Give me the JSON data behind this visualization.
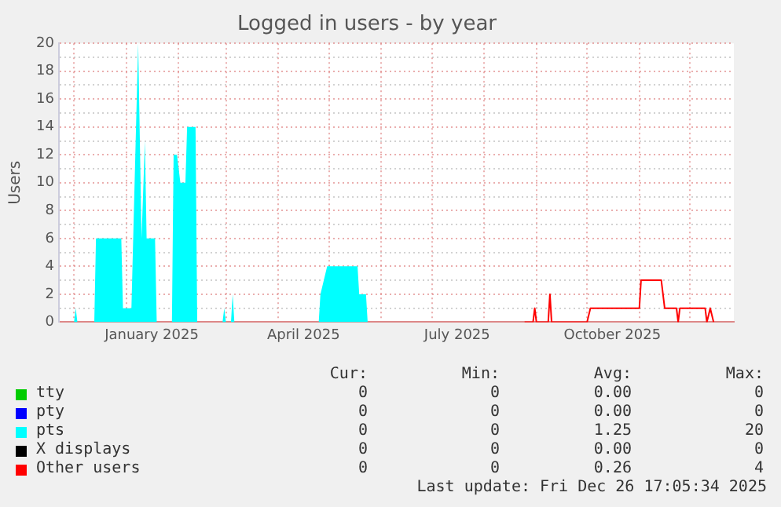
{
  "chart_data": {
    "type": "area",
    "title": "Logged in users - by year",
    "ylabel": "Users",
    "xlim": [
      "2024-11-22",
      "2025-12-27"
    ],
    "ylim": [
      0,
      20
    ],
    "yticks": [
      0,
      {
        "value": 1,
        "label": null
      },
      2,
      {
        "value": 3,
        "label": null
      },
      4,
      {
        "value": 5,
        "label": null
      },
      6,
      {
        "value": 7,
        "label": null
      },
      8,
      {
        "value": 9,
        "label": null
      },
      10,
      {
        "value": 11,
        "label": null
      },
      12,
      {
        "value": 13,
        "label": null
      },
      14,
      {
        "value": 15,
        "label": null
      },
      16,
      {
        "value": 17,
        "label": null
      },
      18,
      {
        "value": 19,
        "label": null
      },
      20
    ],
    "xticks": [
      {
        "value": "2024-12-01",
        "label": null
      },
      {
        "value": "2025-01-01",
        "label": null
      },
      {
        "value": "2025-01-16",
        "label": "January 2025"
      },
      {
        "value": "2025-02-01",
        "label": null
      },
      {
        "value": "2025-03-01",
        "label": null
      },
      {
        "value": "2025-04-01",
        "label": null
      },
      {
        "value": "2025-04-16",
        "label": "April 2025"
      },
      {
        "value": "2025-05-01",
        "label": null
      },
      {
        "value": "2025-06-01",
        "label": null
      },
      {
        "value": "2025-07-01",
        "label": null
      },
      {
        "value": "2025-07-16",
        "label": "July 2025"
      },
      {
        "value": "2025-08-01",
        "label": null
      },
      {
        "value": "2025-09-01",
        "label": null
      },
      {
        "value": "2025-10-01",
        "label": null
      },
      {
        "value": "2025-10-16",
        "label": "October 2025"
      },
      {
        "value": "2025-11-01",
        "label": null
      },
      {
        "value": "2025-12-01",
        "label": null
      }
    ],
    "grid": true,
    "legend": "bottom",
    "series": [
      {
        "name": "tty",
        "color": "#00cc00"
      },
      {
        "name": "pty",
        "color": "#0000ff"
      },
      {
        "name": "pts",
        "color": "#00ffff",
        "x": [
          "2024-11-22",
          "2024-12-01",
          "2024-12-02",
          "2024-12-03",
          "2024-12-13",
          "2024-12-14",
          "2024-12-29",
          "2024-12-30",
          "2025-01-04",
          "2025-01-08",
          "2025-01-10",
          "2025-01-12",
          "2025-01-13",
          "2025-01-18",
          "2025-01-19",
          "2025-01-28",
          "2025-01-29",
          "2025-01-31",
          "2025-02-02",
          "2025-02-05",
          "2025-02-06",
          "2025-02-11",
          "2025-02-12",
          "2025-02-27",
          "2025-02-28",
          "2025-03-01",
          "2025-03-04",
          "2025-03-05",
          "2025-03-06",
          "2025-04-25",
          "2025-04-26",
          "2025-04-30",
          "2025-05-18",
          "2025-05-19",
          "2025-05-23",
          "2025-05-24",
          "2025-12-26"
        ],
        "values": [
          0,
          0,
          1,
          0,
          0,
          6,
          6,
          1,
          1,
          20,
          6,
          13,
          6,
          6,
          0,
          0,
          12,
          12,
          10,
          10,
          14,
          14,
          0,
          0,
          1,
          0,
          0,
          2,
          0,
          0,
          2,
          4,
          4,
          2,
          2,
          0,
          0
        ]
      },
      {
        "name": "X displays",
        "color": "#000000"
      },
      {
        "name": "Other users",
        "color": "#ff0000",
        "type": "line",
        "x": [
          "2025-08-25",
          "2025-08-30",
          "2025-08-31",
          "2025-09-01",
          "2025-09-08",
          "2025-09-09",
          "2025-09-10",
          "2025-10-01",
          "2025-10-03",
          "2025-11-01",
          "2025-11-02",
          "2025-11-14",
          "2025-11-16",
          "2025-11-23",
          "2025-11-24",
          "2025-11-25",
          "2025-12-10",
          "2025-12-11",
          "2025-12-13",
          "2025-12-15"
        ],
        "values": [
          0,
          0,
          1,
          0,
          0,
          2,
          0,
          0,
          1,
          1,
          3,
          3,
          1,
          1,
          0,
          1,
          1,
          0,
          1,
          0
        ]
      }
    ],
    "annotations": [
      "Cur:",
      "Min:",
      "Avg:",
      "Max:",
      "0",
      "0",
      "0.00",
      "0",
      "0",
      "0",
      "0.00",
      "0",
      "0",
      "0",
      "1.25",
      "20",
      "0",
      "0",
      "0.00",
      "0",
      "0",
      "0",
      "0.26",
      "4",
      "Last update: Fri Dec 26 17:05:34 2025"
    ]
  }
}
